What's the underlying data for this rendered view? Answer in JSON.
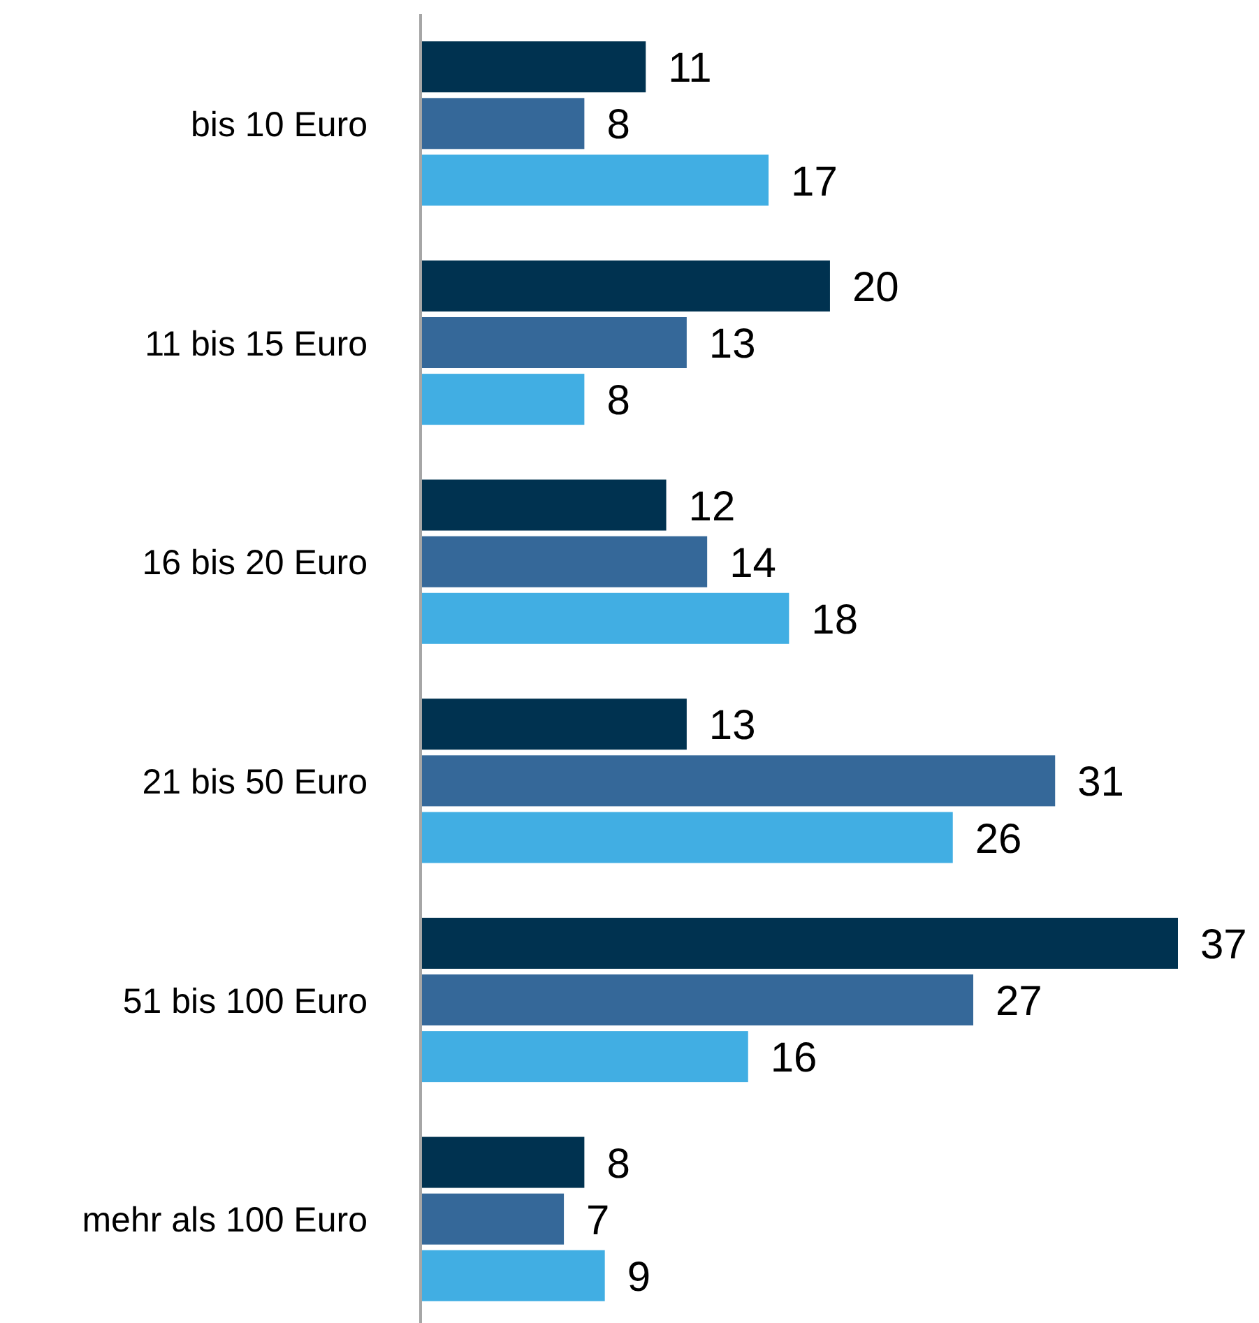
{
  "chart_data": {
    "type": "bar",
    "orientation": "horizontal",
    "data_labels": true,
    "categories": [
      "bis 10 Euro",
      "11 bis 15 Euro",
      "16 bis 20 Euro",
      "21 bis 50 Euro",
      "51 bis 100 Euro",
      "mehr als 100 Euro"
    ],
    "series": [
      {
        "color": "#003250",
        "values": [
          11,
          20,
          12,
          13,
          37,
          8
        ]
      },
      {
        "color": "#356899",
        "values": [
          8,
          13,
          14,
          31,
          27,
          7
        ]
      },
      {
        "color": "#41aee3",
        "values": [
          17,
          8,
          18,
          26,
          16,
          9
        ]
      }
    ]
  }
}
